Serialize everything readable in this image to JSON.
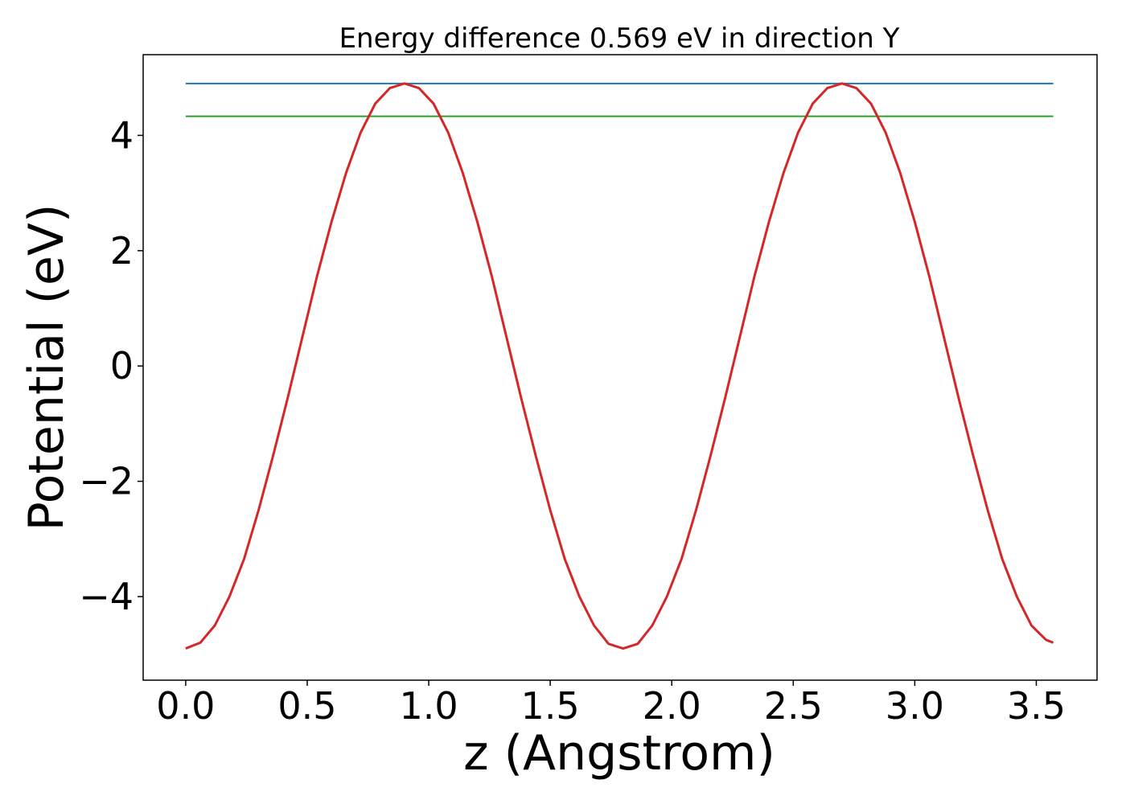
{
  "chart_data": {
    "type": "line",
    "title": "Energy difference 0.569 eV in direction Y",
    "xlabel": "z (Angstrom)",
    "ylabel": "Potential (eV)",
    "xlim": [
      -0.175,
      3.75
    ],
    "ylim": [
      -5.45,
      5.4
    ],
    "xticks": [
      0.0,
      0.5,
      1.0,
      1.5,
      2.0,
      2.5,
      3.0,
      3.5
    ],
    "xtick_labels": [
      "0.0",
      "0.5",
      "1.0",
      "1.5",
      "2.0",
      "2.5",
      "3.0",
      "3.5"
    ],
    "yticks": [
      -4,
      -2,
      0,
      2,
      4
    ],
    "ytick_labels": [
      "−4",
      "−2",
      "0",
      "2",
      "4"
    ],
    "grid": false,
    "series": [
      {
        "color": "#d62728",
        "x": [
          0.0,
          0.06,
          0.12,
          0.18,
          0.24,
          0.3,
          0.36,
          0.42,
          0.48,
          0.54,
          0.6,
          0.66,
          0.72,
          0.78,
          0.84,
          0.9,
          0.96,
          1.02,
          1.08,
          1.14,
          1.2,
          1.26,
          1.32,
          1.38,
          1.44,
          1.5,
          1.56,
          1.62,
          1.68,
          1.74,
          1.8,
          1.86,
          1.92,
          1.98,
          2.04,
          2.1,
          2.16,
          2.22,
          2.28,
          2.34,
          2.4,
          2.46,
          2.52,
          2.58,
          2.64,
          2.7,
          2.76,
          2.82,
          2.88,
          2.94,
          3.0,
          3.06,
          3.12,
          3.18,
          3.24,
          3.3,
          3.36,
          3.42,
          3.48,
          3.54,
          3.57
        ],
        "y": [
          -4.9,
          -4.8,
          -4.5,
          -4.0,
          -3.35,
          -2.5,
          -1.55,
          -0.55,
          0.5,
          1.55,
          2.5,
          3.35,
          4.05,
          4.55,
          4.82,
          4.9,
          4.82,
          4.55,
          4.05,
          3.35,
          2.5,
          1.55,
          0.5,
          -0.55,
          -1.55,
          -2.5,
          -3.35,
          -4.0,
          -4.5,
          -4.82,
          -4.9,
          -4.82,
          -4.5,
          -4.0,
          -3.35,
          -2.5,
          -1.55,
          -0.55,
          0.5,
          1.55,
          2.5,
          3.35,
          4.05,
          4.55,
          4.82,
          4.9,
          4.82,
          4.55,
          4.05,
          3.35,
          2.5,
          1.55,
          0.5,
          -0.55,
          -1.55,
          -2.5,
          -3.35,
          -4.0,
          -4.5,
          -4.75,
          -4.8
        ]
      }
    ],
    "hlines": [
      {
        "y": 4.9,
        "x_start": 0.0,
        "x_end": 3.57,
        "color": "#1f77b4"
      },
      {
        "y": 4.331,
        "x_start": 0.0,
        "x_end": 3.57,
        "color": "#2ca02c"
      }
    ]
  }
}
